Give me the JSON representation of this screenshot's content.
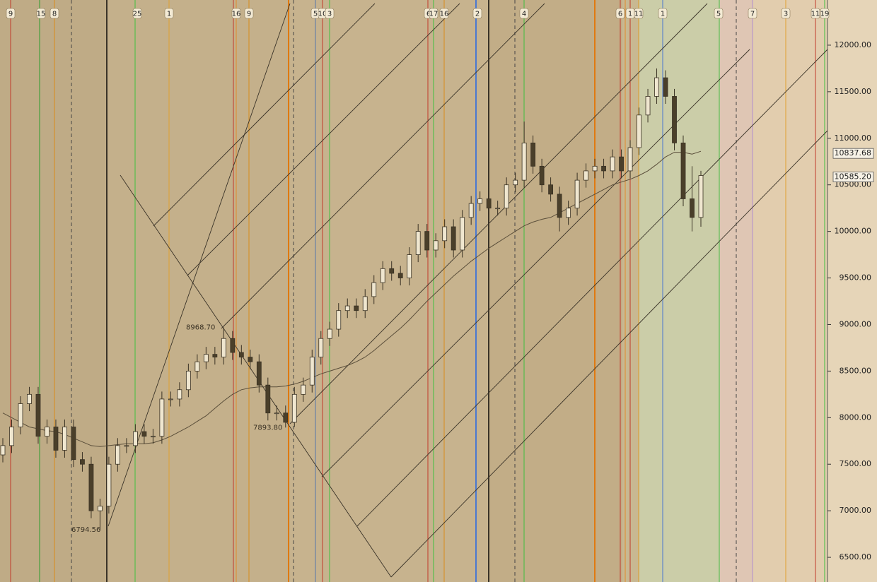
{
  "chart_data": {
    "type": "candlestick",
    "ylim": [
      6235,
      12485
    ],
    "yticks": [
      {
        "value": 6500,
        "label": "6500.00"
      },
      {
        "value": 7000,
        "label": "7000.00"
      },
      {
        "value": 7500,
        "label": "7500.00"
      },
      {
        "value": 8000,
        "label": "8000.00"
      },
      {
        "value": 8500,
        "label": "8500.00"
      },
      {
        "value": 9000,
        "label": "9000.00"
      },
      {
        "value": 9500,
        "label": "9500.00"
      },
      {
        "value": 10000,
        "label": "10000.00"
      },
      {
        "value": 10500,
        "label": "10500.00"
      },
      {
        "value": 11000,
        "label": "11000.00"
      },
      {
        "value": 11500,
        "label": "11500.00"
      },
      {
        "value": 12000,
        "label": "12000.00"
      }
    ],
    "candles": {
      "open": [
        7600,
        7700,
        7900,
        8150,
        8250,
        7800,
        7900,
        7650,
        7900,
        7550,
        7500,
        7000,
        7050,
        7500,
        7700,
        7700,
        7850,
        7800,
        7800,
        8200,
        8200,
        8300,
        8500,
        8600,
        8680,
        8650,
        8850,
        8700,
        8650,
        8600,
        8350,
        8050,
        8050,
        7950,
        8250,
        8350,
        8650,
        8850,
        8950,
        9150,
        9200,
        9150,
        9300,
        9450,
        9600,
        9550,
        9500,
        9750,
        10000,
        9800,
        9900,
        10050,
        9800,
        10150,
        10300,
        10350,
        10250,
        10250,
        10500,
        10550,
        10950,
        10700,
        10500,
        10400,
        10150,
        10250,
        10550,
        10650,
        10700,
        10650,
        10800,
        10650,
        10900,
        11250,
        11450,
        11650,
        11450,
        10950,
        10350,
        10150
      ],
      "high": [
        7780,
        7980,
        8230,
        8330,
        8330,
        7980,
        7980,
        7980,
        7980,
        7630,
        7580,
        7130,
        7580,
        7780,
        7780,
        7930,
        7930,
        7880,
        8280,
        8280,
        8380,
        8580,
        8680,
        8760,
        8760,
        8968.7,
        8930,
        8780,
        8730,
        8680,
        8430,
        8130,
        8130,
        8330,
        8430,
        8730,
        8930,
        9030,
        9230,
        9280,
        9280,
        9380,
        9530,
        9680,
        9680,
        9630,
        9830,
        10080,
        10080,
        9980,
        10130,
        10130,
        10230,
        10380,
        10430,
        10430,
        10330,
        10580,
        10630,
        11180,
        11030,
        10780,
        10580,
        10480,
        10330,
        10630,
        10730,
        10780,
        10780,
        10880,
        10880,
        10980,
        11330,
        11530,
        11750,
        11730,
        11530,
        11030,
        10700,
        10650
      ],
      "low": [
        7520,
        7620,
        7820,
        8070,
        7720,
        7720,
        7570,
        7570,
        7470,
        7420,
        6920,
        6794.56,
        6970,
        7420,
        7620,
        7620,
        7720,
        7720,
        7720,
        8120,
        8120,
        8220,
        8420,
        8520,
        8570,
        8570,
        8620,
        8570,
        8520,
        8270,
        7970,
        7970,
        7893.8,
        7900,
        8170,
        8270,
        8570,
        8770,
        8870,
        9070,
        9070,
        9070,
        9220,
        9370,
        9470,
        9420,
        9420,
        9670,
        9720,
        9720,
        9820,
        9720,
        9720,
        10070,
        10220,
        10170,
        10170,
        10170,
        10420,
        10470,
        10620,
        10420,
        10320,
        10000,
        10070,
        10170,
        10470,
        10570,
        10570,
        10570,
        10570,
        10570,
        10820,
        11170,
        11370,
        11370,
        10870,
        10270,
        10000,
        10050
      ],
      "close": [
        7700,
        7900,
        8150,
        8250,
        7800,
        7900,
        7650,
        7900,
        7550,
        7500,
        7000,
        7050,
        7500,
        7700,
        7700,
        7850,
        7800,
        7800,
        8200,
        8200,
        8300,
        8500,
        8600,
        8680,
        8650,
        8850,
        8700,
        8650,
        8600,
        8350,
        8050,
        8050,
        7950,
        8250,
        8350,
        8650,
        8850,
        8950,
        9150,
        9200,
        9150,
        9300,
        9450,
        9600,
        9550,
        9500,
        9750,
        10000,
        9800,
        9900,
        10050,
        9800,
        10150,
        10300,
        10350,
        10250,
        10250,
        10500,
        10550,
        10950,
        10700,
        10500,
        10400,
        10150,
        10250,
        10550,
        10650,
        10700,
        10650,
        10800,
        10650,
        10900,
        11250,
        11450,
        11650,
        11450,
        10950,
        10350,
        10150,
        10600
      ]
    },
    "moving_average": [
      8050,
      8000,
      7950,
      7900,
      7880,
      7860,
      7850,
      7820,
      7780,
      7740,
      7700,
      7690,
      7700,
      7710,
      7720,
      7720,
      7720,
      7730,
      7760,
      7800,
      7850,
      7900,
      7960,
      8020,
      8100,
      8180,
      8250,
      8300,
      8320,
      8330,
      8330,
      8330,
      8340,
      8360,
      8390,
      8430,
      8470,
      8500,
      8530,
      8560,
      8600,
      8650,
      8720,
      8800,
      8880,
      8960,
      9050,
      9150,
      9250,
      9340,
      9430,
      9520,
      9600,
      9680,
      9750,
      9820,
      9880,
      9940,
      10000,
      10060,
      10100,
      10130,
      10150,
      10200,
      10250,
      10300,
      10350,
      10400,
      10450,
      10500,
      10530,
      10560,
      10600,
      10650,
      10720,
      10800,
      10850,
      10850,
      10830,
      10860
    ],
    "price_labels": [
      {
        "value": 10837.68,
        "label": "10837.68"
      },
      {
        "value": 10585.2,
        "label": "10585.20"
      }
    ],
    "annotations": [
      {
        "value": 8968.7,
        "label": "8968.70"
      },
      {
        "value": 7893.8,
        "label": "7893.80"
      },
      {
        "value": 6794.56,
        "label": "6794.56"
      }
    ],
    "cycle_markers": [
      "9",
      "15",
      "8",
      "25",
      "1",
      "16",
      "9",
      "5",
      "10",
      "3",
      "6",
      "17",
      "16",
      "2",
      "4",
      "6",
      "1",
      "11",
      "1",
      "5",
      "7",
      "3",
      "11",
      "19"
    ]
  }
}
